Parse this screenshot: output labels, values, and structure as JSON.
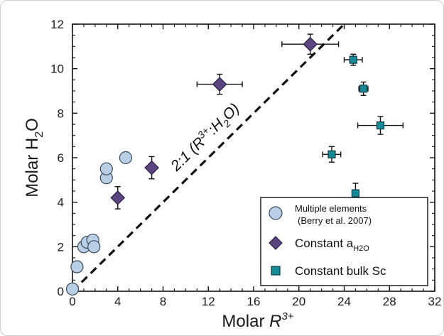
{
  "chart_data": {
    "type": "scatter",
    "xlabel": {
      "base": "Molar ",
      "italic": "R",
      "sup": "3+"
    },
    "ylabel": {
      "base": "Molar H",
      "sub": "2",
      "tail": "O"
    },
    "xlim": [
      0,
      32
    ],
    "ylim": [
      0,
      12
    ],
    "xticks": [
      "0",
      "4",
      "8",
      "12",
      "16",
      "20",
      "24",
      "28",
      "32"
    ],
    "yticks": [
      "0",
      "2",
      "4",
      "6",
      "8",
      "10",
      "12"
    ],
    "grid": false,
    "legend_position": "bottom-right",
    "series": [
      {
        "name": "Multiple elements",
        "name_line2": "(Berry et al. 2007)",
        "marker": "circle",
        "color": "#b9cfe6",
        "stroke": "#3a4a5a",
        "points": [
          {
            "x": 0,
            "y": 0.1
          },
          {
            "x": 0.4,
            "y": 1.1
          },
          {
            "x": 1.0,
            "y": 2.0
          },
          {
            "x": 1.3,
            "y": 2.2
          },
          {
            "x": 1.8,
            "y": 2.3
          },
          {
            "x": 1.9,
            "y": 2.0
          },
          {
            "x": 3.0,
            "y": 5.1
          },
          {
            "x": 3.0,
            "y": 5.5
          },
          {
            "x": 4.7,
            "y": 6.0
          }
        ]
      },
      {
        "name": "Constant a",
        "name_sub": "H2O",
        "marker": "diamond",
        "color": "#5a4580",
        "stroke": "#2b1f40",
        "points": [
          {
            "x": 4.0,
            "y": 4.2,
            "yerr": 0.5
          },
          {
            "x": 7.0,
            "y": 5.55,
            "yerr": 0.5
          },
          {
            "x": 13.0,
            "y": 9.3,
            "yerr": 0.45,
            "xerr": 2.0
          },
          {
            "x": 21.0,
            "y": 11.1,
            "yerr": 0.45,
            "xerr": 2.5
          }
        ]
      },
      {
        "name": "Constant bulk Sc",
        "marker": "square",
        "color": "#178a97",
        "stroke": "#0d3e45",
        "points": [
          {
            "x": 24.8,
            "y": 10.4,
            "yerr": 0.25,
            "xerr": 0.8
          },
          {
            "x": 25.7,
            "y": 9.1,
            "yerr": 0.3,
            "xerr": 0.4
          },
          {
            "x": 27.2,
            "y": 7.45,
            "yerr": 0.4,
            "xerr": 2.0
          },
          {
            "x": 22.9,
            "y": 6.15,
            "yerr": 0.35,
            "xerr": 0.8
          },
          {
            "x": 25.0,
            "y": 4.4,
            "yerr": 0.45,
            "xerr": 0.3
          }
        ]
      }
    ],
    "reference_line": {
      "x": [
        0,
        24
      ],
      "y": [
        0,
        12
      ],
      "style": "dashed",
      "label_parts": {
        "a": "2:1 (",
        "b": "R",
        "c": "3+",
        "d": ":H",
        "e": "2",
        "f": "O)"
      }
    }
  }
}
